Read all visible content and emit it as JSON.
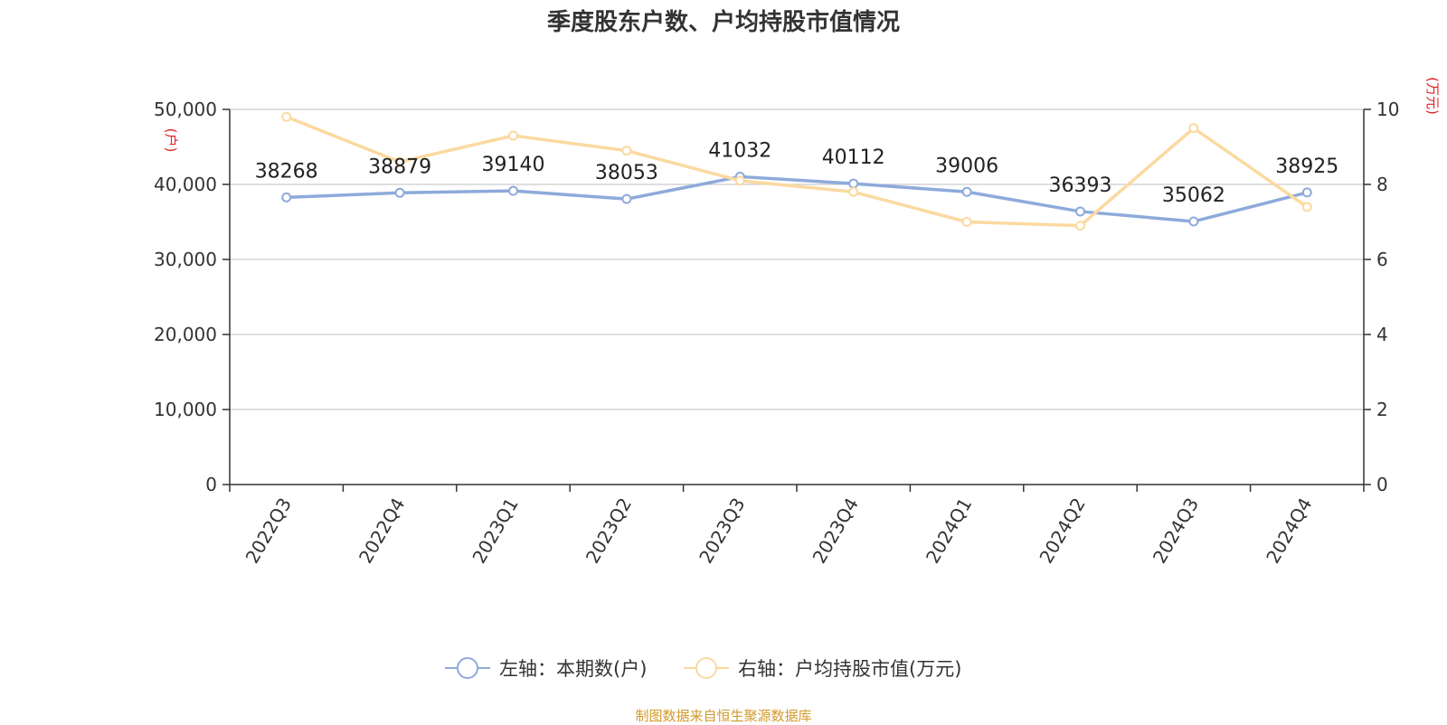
{
  "title": "季度股东户数、户均持股市值情况",
  "source": "制图数据来自恒生聚源数据库",
  "chart_data": {
    "type": "line",
    "categories": [
      "2022Q3",
      "2022Q4",
      "2023Q1",
      "2023Q2",
      "2023Q3",
      "2023Q4",
      "2024Q1",
      "2024Q2",
      "2024Q3",
      "2024Q4"
    ],
    "series": [
      {
        "name": "左轴：本期数(户)",
        "axis": "left",
        "color": "#8eaadb",
        "values": [
          38268,
          38879,
          39140,
          38053,
          41032,
          40112,
          39006,
          36393,
          35062,
          38925
        ],
        "data_labels": [
          "38268",
          "38879",
          "39140",
          "38053",
          "41032",
          "40112",
          "39006",
          "36393",
          "35062",
          "38925"
        ]
      },
      {
        "name": "右轴：户均持股市值(万元)",
        "axis": "right",
        "color": "#fbd9a0",
        "values": [
          9.8,
          8.6,
          9.3,
          8.9,
          8.1,
          7.8,
          7.0,
          6.9,
          9.5,
          7.4
        ]
      }
    ],
    "left_axis": {
      "unit": "(户)",
      "range": [
        0,
        50000
      ],
      "ticks": [
        0,
        10000,
        20000,
        30000,
        40000,
        50000
      ],
      "tick_labels": [
        "0",
        "10,000",
        "20,000",
        "30,000",
        "40,000",
        "50,000"
      ]
    },
    "right_axis": {
      "unit": "(万元)",
      "range": [
        0,
        10
      ],
      "ticks": [
        0,
        2,
        4,
        6,
        8,
        10
      ],
      "tick_labels": [
        "0",
        "2",
        "4",
        "6",
        "8",
        "10"
      ]
    },
    "grid": true,
    "legend_position": "bottom"
  }
}
